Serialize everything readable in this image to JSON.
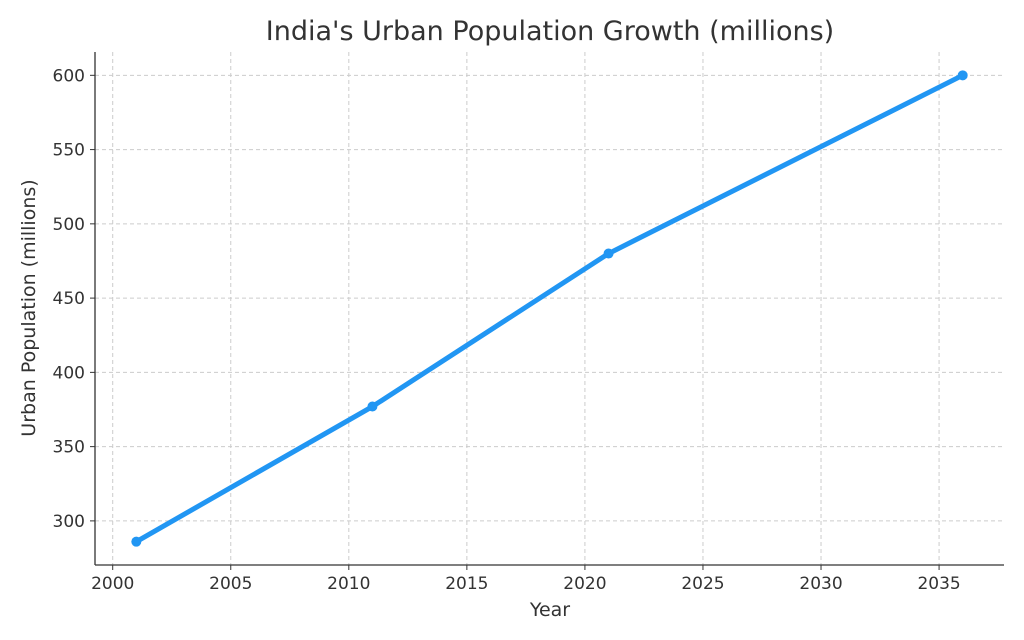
{
  "chart_data": {
    "type": "line",
    "title": "India's Urban Population Growth (millions)",
    "xlabel": "Year",
    "ylabel": "Urban Population (millions)",
    "x": [
      2001,
      2011,
      2021,
      2036
    ],
    "series": [
      {
        "name": "Urban Population",
        "values": [
          286,
          377,
          480,
          600
        ],
        "color": "#2196F3"
      }
    ],
    "xlim": [
      1999.25,
      2037.75
    ],
    "ylim": [
      270.3,
      615.7
    ],
    "xticks": [
      2000,
      2005,
      2010,
      2015,
      2020,
      2025,
      2030,
      2035
    ],
    "yticks": [
      300,
      350,
      400,
      450,
      500,
      550,
      600
    ],
    "grid": true,
    "legend": "none"
  }
}
